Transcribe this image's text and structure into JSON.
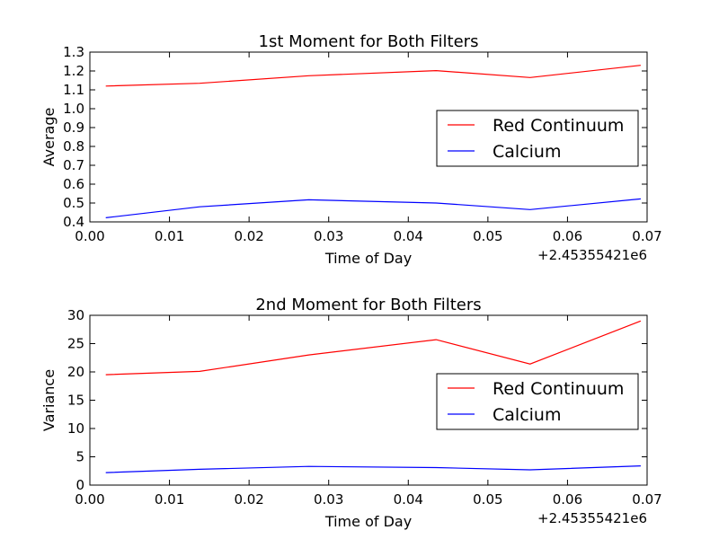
{
  "chart_data": [
    {
      "type": "line",
      "title": "1st Moment for Both Filters",
      "xlabel": "Time of Day",
      "ylabel": "Average",
      "x_offset_label": "+2.45355421e6",
      "xlim": [
        0.0,
        0.07
      ],
      "ylim": [
        0.4,
        1.3
      ],
      "xticks": [
        0.0,
        0.01,
        0.02,
        0.03,
        0.04,
        0.05,
        0.06,
        0.07
      ],
      "xtick_labels": [
        "0.00",
        "0.01",
        "0.02",
        "0.03",
        "0.04",
        "0.05",
        "0.06",
        "0.07"
      ],
      "yticks": [
        0.4,
        0.5,
        0.6,
        0.7,
        0.8,
        0.9,
        1.0,
        1.1,
        1.2,
        1.3
      ],
      "ytick_labels": [
        "0.4",
        "0.5",
        "0.6",
        "0.7",
        "0.8",
        "0.9",
        "1.0",
        "1.1",
        "1.2",
        "1.3"
      ],
      "legend_position": "center-right",
      "grid": false,
      "x": [
        0.002,
        0.0138,
        0.0275,
        0.0435,
        0.0553,
        0.0692
      ],
      "series": [
        {
          "name": "Red Continuum",
          "color": "#ff0000",
          "values": [
            1.12,
            1.135,
            1.175,
            1.202,
            1.165,
            1.23
          ]
        },
        {
          "name": "Calcium",
          "color": "#0000ff",
          "values": [
            0.422,
            0.48,
            0.517,
            0.5,
            0.465,
            0.522
          ]
        }
      ]
    },
    {
      "type": "line",
      "title": "2nd Moment for Both Filters",
      "xlabel": "Time of Day",
      "ylabel": "Variance",
      "x_offset_label": "+2.45355421e6",
      "xlim": [
        0.0,
        0.07
      ],
      "ylim": [
        0,
        30
      ],
      "xticks": [
        0.0,
        0.01,
        0.02,
        0.03,
        0.04,
        0.05,
        0.06,
        0.07
      ],
      "xtick_labels": [
        "0.00",
        "0.01",
        "0.02",
        "0.03",
        "0.04",
        "0.05",
        "0.06",
        "0.07"
      ],
      "yticks": [
        0,
        5,
        10,
        15,
        20,
        25,
        30
      ],
      "ytick_labels": [
        "0",
        "5",
        "10",
        "15",
        "20",
        "25",
        "30"
      ],
      "legend_position": "center-right",
      "grid": false,
      "x": [
        0.002,
        0.0138,
        0.0275,
        0.0435,
        0.0553,
        0.0692
      ],
      "series": [
        {
          "name": "Red Continuum",
          "color": "#ff0000",
          "values": [
            19.5,
            20.1,
            23.0,
            25.7,
            21.4,
            29.0
          ]
        },
        {
          "name": "Calcium",
          "color": "#0000ff",
          "values": [
            2.2,
            2.8,
            3.3,
            3.1,
            2.7,
            3.4
          ]
        }
      ]
    }
  ]
}
